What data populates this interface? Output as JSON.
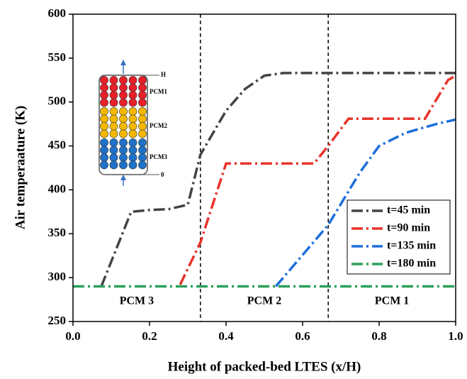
{
  "chart_data": {
    "type": "line",
    "xlabel": "Height of packed-bed LTES (x/H)",
    "ylabel": "Air temperaature (K)",
    "xlim": [
      0,
      1
    ],
    "ylim": [
      250,
      600
    ],
    "xticks": [
      {
        "value": 0,
        "label": "0.0"
      },
      0.2,
      0.4,
      0.6,
      0.8,
      {
        "value": 1,
        "label": "1.0"
      }
    ],
    "yticks": [
      250,
      300,
      350,
      400,
      450,
      500,
      550,
      600
    ],
    "vlines": [
      0.333,
      0.667
    ],
    "region_labels": [
      "PCM 3",
      "PCM 2",
      "PCM 1"
    ],
    "inset_labels": [
      "H",
      "PCM1",
      "PCM2",
      "PCM3",
      "0"
    ],
    "legend": "lower right",
    "series": [
      {
        "name": "t=45 min",
        "color": "#444444",
        "x": [
          0.074,
          0.152,
          0.2,
          0.25,
          0.3,
          0.333,
          0.4,
          0.45,
          0.5,
          0.55,
          1.0
        ],
        "values": [
          290,
          375,
          377,
          378,
          383,
          440,
          490,
          515,
          530,
          533,
          533
        ]
      },
      {
        "name": "t=90 min",
        "color": "#e8332a",
        "x": [
          0.28,
          0.333,
          0.4,
          0.5,
          0.63,
          0.667,
          0.72,
          0.92,
          0.98,
          1.0
        ],
        "values": [
          292,
          340,
          430,
          430,
          430,
          450,
          481,
          481,
          525,
          530
        ]
      },
      {
        "name": "t=135 min",
        "color": "#1e6fd9",
        "x": [
          0.53,
          0.667,
          0.75,
          0.8,
          0.87,
          0.95,
          1.0
        ],
        "values": [
          290,
          360,
          420,
          450,
          465,
          475,
          480
        ]
      },
      {
        "name": "t=180 min",
        "color": "#2ca05a",
        "x": [
          0,
          1
        ],
        "values": [
          290,
          290
        ]
      }
    ]
  }
}
